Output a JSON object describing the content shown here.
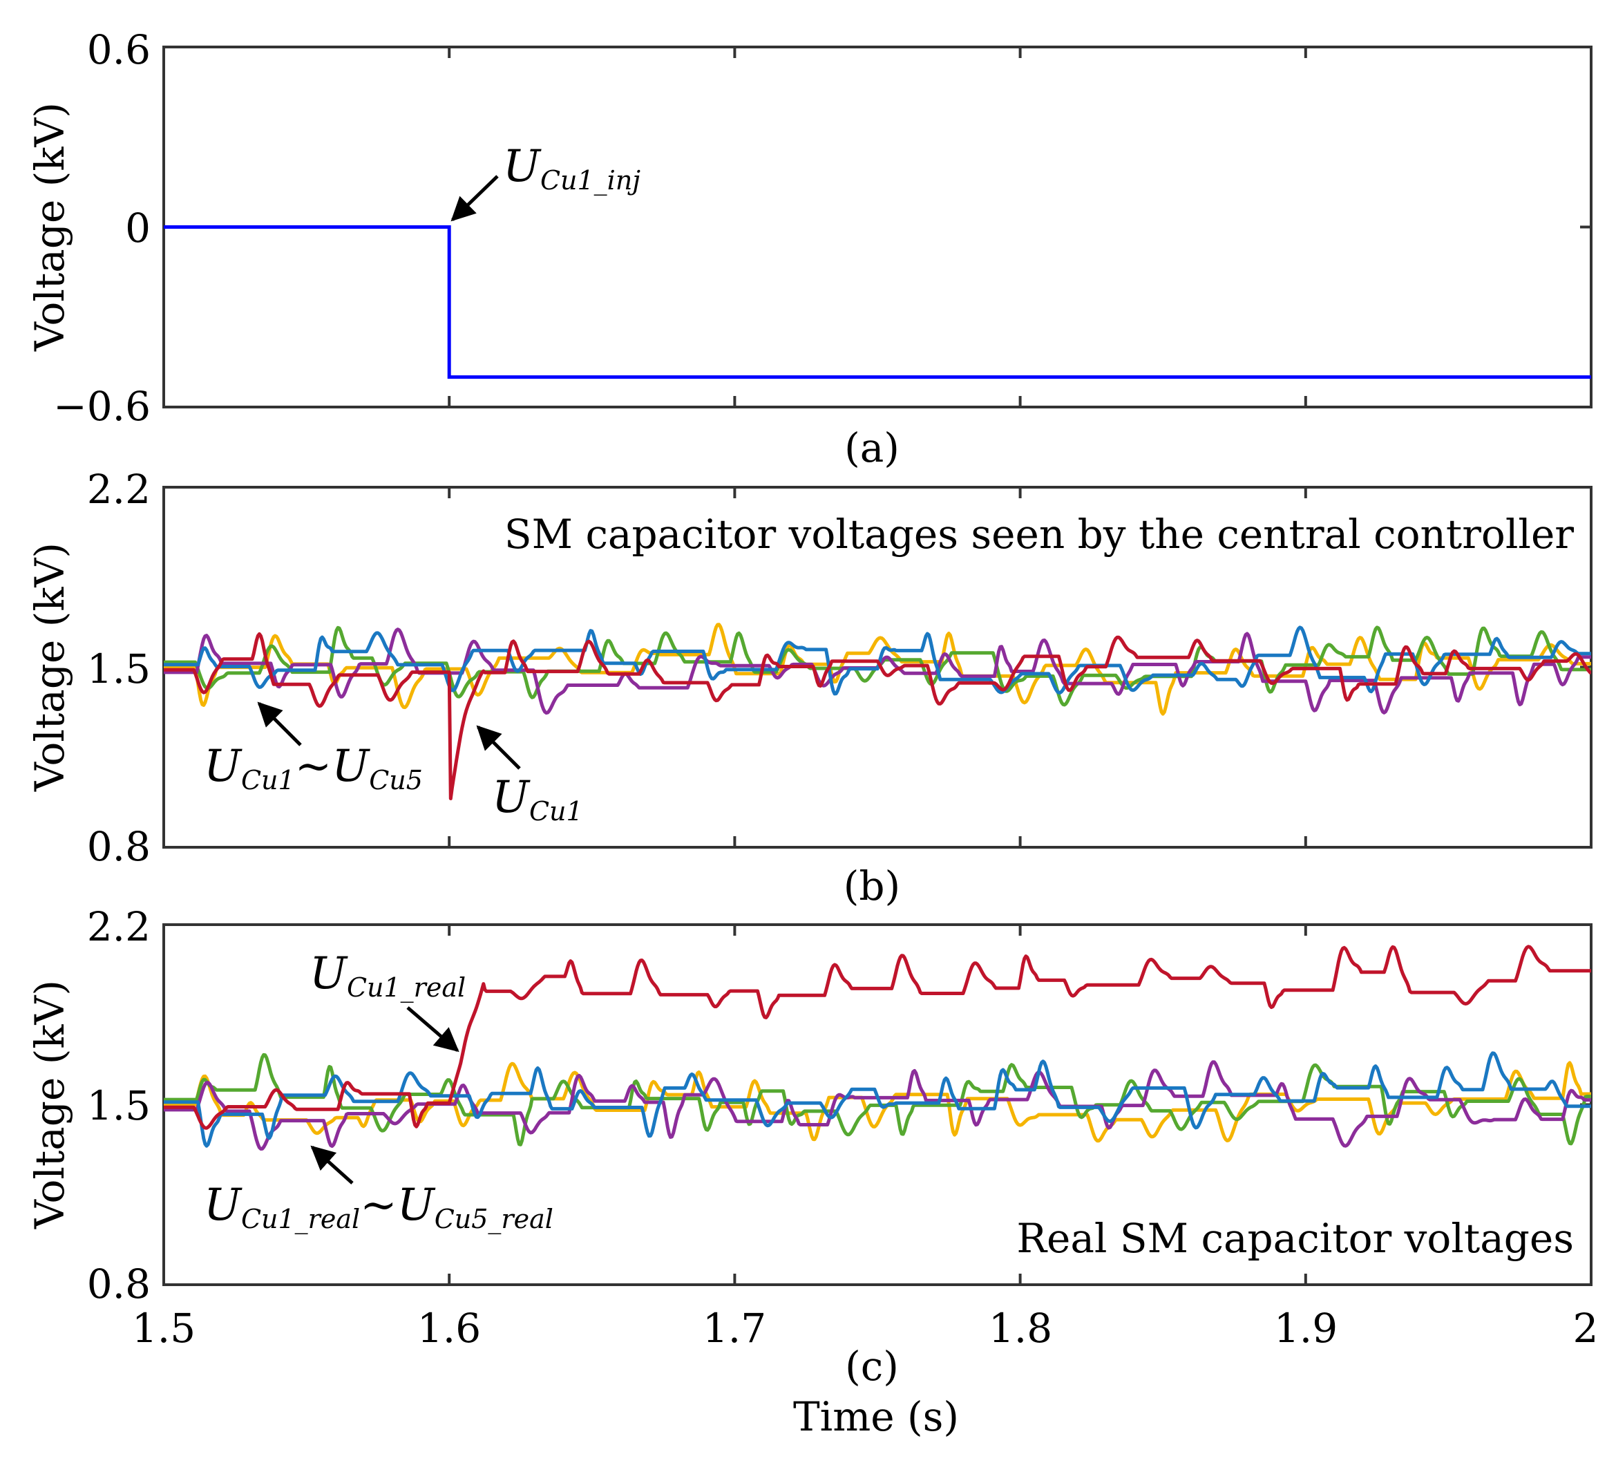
{
  "colors": {
    "blue": "#0000ff",
    "red": "#c0142b",
    "green": "#55a830",
    "yellow": "#f5b400",
    "purple": "#8c2d9a",
    "lightblue": "#1a78c2"
  },
  "chart_data": [
    {
      "id": "a",
      "type": "line",
      "sublabel": "(a)",
      "ylabel": "Voltage (kV)",
      "xlim": [
        1.5,
        2.0
      ],
      "ylim": [
        -0.6,
        0.6
      ],
      "yticks": [
        -0.6,
        0,
        0.6
      ],
      "ytick_labels": [
        "−0.6",
        "0",
        "0.6"
      ],
      "xticks": [
        1.5,
        1.6,
        1.7,
        1.8,
        1.9,
        2.0
      ],
      "show_xtick_labels": false,
      "series": [
        {
          "name": "U_Cu1_inj",
          "color_key": "blue",
          "points": [
            [
              1.5,
              0
            ],
            [
              1.6,
              0
            ],
            [
              1.6,
              -0.5
            ],
            [
              2.0,
              -0.5
            ]
          ]
        }
      ],
      "annotations": [
        {
          "main": "U",
          "sub": "Cu1_inj",
          "arrow_to": [
            1.6,
            0
          ]
        }
      ]
    },
    {
      "id": "b",
      "type": "line",
      "sublabel": "(b)",
      "title": "SM capacitor voltages seen by the central controller",
      "ylabel": "Voltage (kV)",
      "xlim": [
        1.5,
        2.0
      ],
      "ylim": [
        0.8,
        2.2
      ],
      "yticks": [
        0.8,
        1.5,
        2.2
      ],
      "ytick_labels": [
        "0.8",
        "1.5",
        "2.2"
      ],
      "xticks": [
        1.5,
        1.6,
        1.7,
        1.8,
        1.9,
        2.0
      ],
      "show_xtick_labels": false,
      "series": [
        {
          "name": "U_Cu1",
          "color_key": "red",
          "base": 1.49,
          "dip_at": 1.6,
          "dip_to": 0.93
        },
        {
          "name": "U_Cu2",
          "color_key": "yellow",
          "base": 1.5
        },
        {
          "name": "U_Cu3",
          "color_key": "green",
          "base": 1.52
        },
        {
          "name": "U_Cu4",
          "color_key": "purple",
          "base": 1.48
        },
        {
          "name": "U_Cu5",
          "color_key": "lightblue",
          "base": 1.51
        }
      ],
      "annotations": [
        {
          "parts": [
            [
              "U",
              "main"
            ],
            [
              "Cu1",
              "sub"
            ],
            [
              "~U",
              "main"
            ],
            [
              "Cu5",
              "sub"
            ]
          ]
        },
        {
          "parts": [
            [
              "U",
              "main"
            ],
            [
              "Cu1",
              "sub"
            ]
          ]
        }
      ]
    },
    {
      "id": "c",
      "type": "line",
      "sublabel": "(c)",
      "title": "Real SM capacitor voltages",
      "ylabel": "Voltage (kV)",
      "xlabel": "Time (s)",
      "xlim": [
        1.5,
        2.0
      ],
      "ylim": [
        0.8,
        2.2
      ],
      "yticks": [
        0.8,
        1.5,
        2.2
      ],
      "ytick_labels": [
        "0.8",
        "1.5",
        "2.2"
      ],
      "xticks": [
        1.5,
        1.6,
        1.7,
        1.8,
        1.9,
        2.0
      ],
      "xtick_labels": [
        "1.5",
        "1.6",
        "1.7",
        "1.8",
        "1.9",
        "2"
      ],
      "series": [
        {
          "name": "U_Cu1_real",
          "color_key": "red",
          "base": 1.49,
          "rise_at": 1.6,
          "rise_to": 1.97
        },
        {
          "name": "U_Cu2_real",
          "color_key": "yellow",
          "base": 1.5
        },
        {
          "name": "U_Cu3_real",
          "color_key": "green",
          "base": 1.52
        },
        {
          "name": "U_Cu4_real",
          "color_key": "purple",
          "base": 1.48
        },
        {
          "name": "U_Cu5_real",
          "color_key": "lightblue",
          "base": 1.51
        }
      ],
      "annotations": [
        {
          "parts": [
            [
              "U",
              "main"
            ],
            [
              "Cu1_real",
              "sub"
            ]
          ]
        },
        {
          "parts": [
            [
              "U",
              "main"
            ],
            [
              "Cu1_real",
              "sub"
            ],
            [
              "~U",
              "main"
            ],
            [
              "Cu5_real",
              "sub"
            ]
          ]
        }
      ]
    }
  ]
}
